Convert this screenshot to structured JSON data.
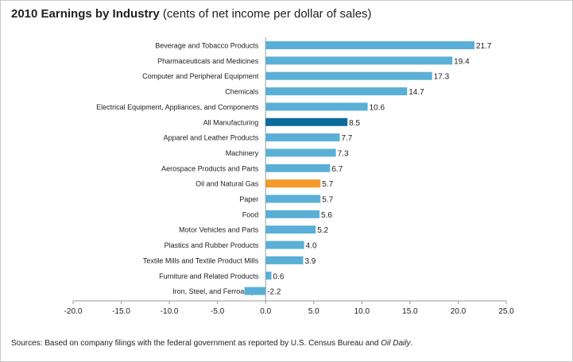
{
  "title": "2010 Earnings by Industry",
  "subtitle": "(cents of net income per dollar of sales)",
  "source_prefix": "Sources: Based on company filings with the federal government as reported by U.S. Census Bureau and ",
  "source_italic": "Oil Daily",
  "source_suffix": ".",
  "colors": {
    "default_bar": "#5aafd6",
    "all_manufacturing": "#0a6a9a",
    "oil_and_gas": "#f39a2a",
    "axis": "#9a9a9a",
    "text": "#222222"
  },
  "chart_data": {
    "type": "bar",
    "orientation": "horizontal",
    "categories": [
      "Beverage and Tobacco Products",
      "Pharmaceuticals and Medicines",
      "Computer and Peripheral Equipment",
      "Chemicals",
      "Electrical Equipment, Appliances, and Components",
      "All Manufacturing",
      "Apparel and Leather Products",
      "Machinery",
      "Aerospace Products and Parts",
      "Oil and Natural Gas",
      "Paper",
      "Food",
      "Motor Vehicles and Parts",
      "Plastics and Rubber Products",
      "Textile Mills and Textile Product Mills",
      "Furniture and Related Products",
      "Iron, Steel, and Ferroalloys"
    ],
    "values": [
      21.7,
      19.4,
      17.3,
      14.7,
      10.6,
      8.5,
      7.7,
      7.3,
      6.7,
      5.7,
      5.7,
      5.6,
      5.2,
      4.0,
      3.9,
      0.6,
      -2.2
    ],
    "value_labels": [
      "21.7",
      "19.4",
      "17.3",
      "14.7",
      "10.6",
      "8.5",
      "7.7",
      "7.3",
      "6.7",
      "5.7",
      "5.7",
      "5.6",
      "5.2",
      "4.0",
      "3.9",
      "0.6",
      "-2.2"
    ],
    "highlight": {
      "All Manufacturing": "all_manufacturing",
      "Oil and Natural Gas": "oil_and_gas"
    },
    "xlim": [
      -20.0,
      25.0
    ],
    "xticks": [
      -20.0,
      -15.0,
      -10.0,
      -5.0,
      0.0,
      5.0,
      10.0,
      15.0,
      20.0,
      25.0
    ],
    "xtick_labels": [
      "-20.0",
      "-15.0",
      "-10.0",
      "-5.0",
      "0.0",
      "5.0",
      "10.0",
      "15.0",
      "20.0",
      "25.0"
    ],
    "grid": false,
    "legend": "none"
  }
}
